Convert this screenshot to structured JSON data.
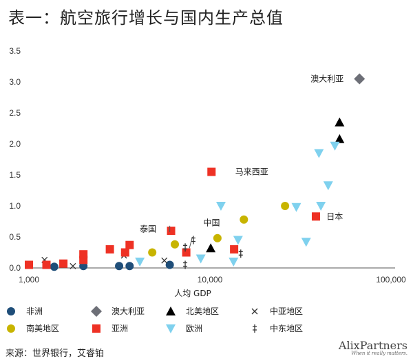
{
  "title": "表一：航空旅行增长与国内生产总值",
  "source": "来源：世界银行，艾睿铂",
  "brand": {
    "name": "AlixPartners",
    "tagline": "When it really matters."
  },
  "colors": {
    "africa": "#1f4e79",
    "australia": "#6d6f77",
    "north_america": "#000000",
    "central_asia": "#333333",
    "south_america": "#c8b400",
    "asia": "#ee3124",
    "europe": "#7fd1ee",
    "middle_east": "#333333"
  },
  "chart_data": {
    "type": "scatter",
    "title": "表一：航空旅行增长与国内生产总值",
    "xlabel": "人均 GDP",
    "ylabel": "",
    "xscale": "log",
    "xlim": [
      1000,
      100000
    ],
    "ylim": [
      0,
      3.5
    ],
    "xticks": [
      1000,
      10000,
      100000
    ],
    "xtick_labels": [
      "1,000",
      "10,000",
      "100,000"
    ],
    "yticks": [
      0,
      0.5,
      1.0,
      1.5,
      2.0,
      2.5,
      3.0,
      3.5
    ],
    "ytick_labels": [
      "0.0",
      "0.5",
      "1.0",
      "1.5",
      "2.0",
      "2.5",
      "3.0",
      "3.5"
    ],
    "legend_position": "bottom",
    "series": [
      {
        "key": "africa",
        "name": "非洲",
        "marker": "circle",
        "points": [
          [
            1380,
            0.02
          ],
          [
            2000,
            0.03
          ],
          [
            3150,
            0.03
          ],
          [
            3600,
            0.03
          ],
          [
            6000,
            0.05
          ]
        ]
      },
      {
        "key": "australia",
        "name": "澳大利亚",
        "marker": "diamond",
        "points": [
          [
            67000,
            3.05
          ]
        ]
      },
      {
        "key": "north_america",
        "name": "北美地区",
        "marker": "triangle",
        "points": [
          [
            52000,
            2.35
          ],
          [
            52000,
            2.08
          ],
          [
            10100,
            0.32
          ]
        ]
      },
      {
        "key": "central_asia",
        "name": "中亚地区",
        "marker": "x",
        "points": [
          [
            1220,
            0.13
          ],
          [
            1750,
            0.03
          ],
          [
            3350,
            0.2
          ],
          [
            5600,
            0.12
          ]
        ]
      },
      {
        "key": "south_america",
        "name": "南美地区",
        "marker": "circle",
        "points": [
          [
            4800,
            0.25
          ],
          [
            6400,
            0.38
          ],
          [
            11000,
            0.48
          ],
          [
            15400,
            0.78
          ],
          [
            26000,
            1.0
          ]
        ]
      },
      {
        "key": "asia",
        "name": "亚洲",
        "marker": "square",
        "points": [
          [
            1000,
            0.05
          ],
          [
            1250,
            0.05
          ],
          [
            1550,
            0.07
          ],
          [
            2000,
            0.13
          ],
          [
            2000,
            0.22
          ],
          [
            2800,
            0.3
          ],
          [
            3400,
            0.25
          ],
          [
            3600,
            0.37
          ],
          [
            6100,
            0.6
          ],
          [
            7400,
            0.25
          ],
          [
            10200,
            1.55
          ],
          [
            13600,
            0.3
          ],
          [
            38500,
            0.83
          ]
        ]
      },
      {
        "key": "europe",
        "name": "欧洲",
        "marker": "triangle-down",
        "points": [
          [
            4100,
            0.1
          ],
          [
            8900,
            0.15
          ],
          [
            11500,
            1.0
          ],
          [
            13500,
            0.1
          ],
          [
            14300,
            0.45
          ],
          [
            30000,
            0.98
          ],
          [
            34000,
            0.42
          ],
          [
            40000,
            1.85
          ],
          [
            41000,
            1.0
          ],
          [
            45000,
            1.33
          ],
          [
            49000,
            1.97
          ]
        ]
      },
      {
        "key": "middle_east",
        "name": "中东地区",
        "marker": "dagger",
        "points": [
          [
            7300,
            0.05
          ],
          [
            7300,
            0.33
          ],
          [
            8100,
            0.45
          ],
          [
            14800,
            0.23
          ]
        ]
      }
    ],
    "annotations": [
      {
        "text": "澳大利亚",
        "x": 36000,
        "y": 3.05
      },
      {
        "text": "马来西亚",
        "x": 13800,
        "y": 1.55
      },
      {
        "text": "中国",
        "x": 9200,
        "y": 0.73
      },
      {
        "text": "泰国",
        "x": 4100,
        "y": 0.63
      },
      {
        "text": "日本",
        "x": 44000,
        "y": 0.83
      }
    ]
  }
}
